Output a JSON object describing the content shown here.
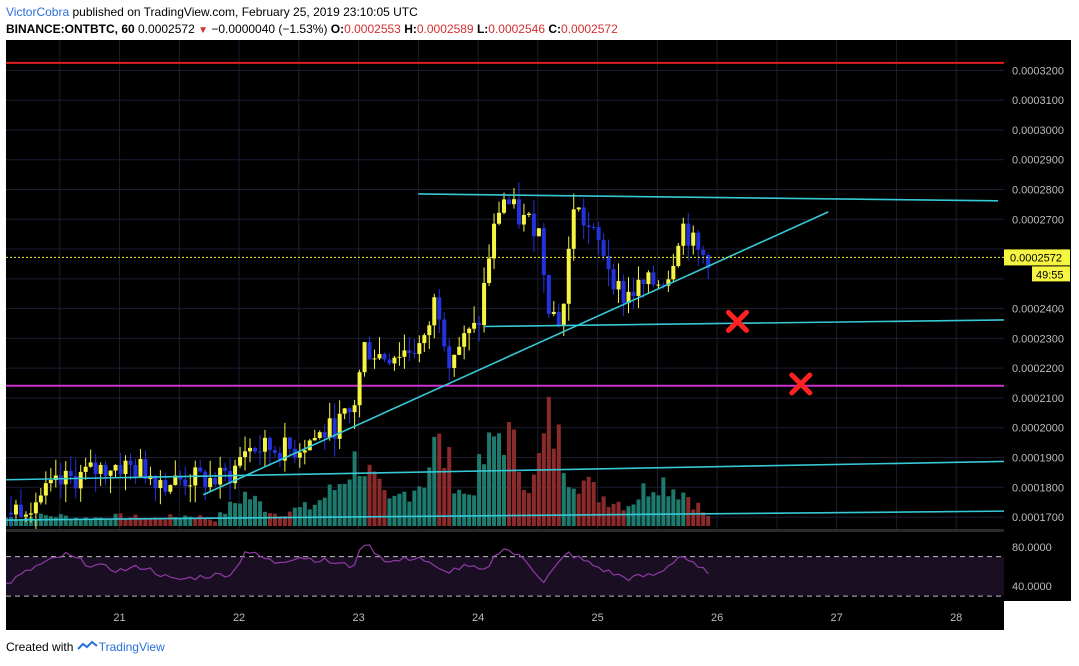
{
  "header": {
    "author": "VictorCobra",
    "published": "published on TradingView.com, February 25, 2019 23:10:05 UTC",
    "symbol": "BINANCE:ONTBTC, 60",
    "last": "0.0002572",
    "change": "−0.0000040 (−1.53%)",
    "o_label": "O:",
    "o": "0.0002553",
    "h_label": "H:",
    "h": "0.0002589",
    "l_label": "L:",
    "l": "0.0002546",
    "c_label": "C:",
    "c": "0.0002572"
  },
  "footer": {
    "created": "Created with",
    "brand": "TradingView"
  },
  "price_tag": {
    "price": "0.0002572",
    "countdown": "49:55"
  },
  "colors": {
    "bg": "#000000",
    "up": "#f5f542",
    "down": "#2233dd",
    "grid": "#1d1d33",
    "trend": "#35c9d6",
    "red_level": "#e02020",
    "magenta_level": "#cc33cc",
    "rsi": "#8e3aa5",
    "vol_up": "#1f7a6e",
    "vol_down": "#8b2a2a"
  },
  "chart_data": {
    "type": "candlestick",
    "title": "",
    "y_axis_ticks": [
      "0.0003200",
      "0.0003100",
      "0.0003000",
      "0.0002900",
      "0.0002800",
      "0.0002700",
      "0.0002600",
      "0.0002500",
      "0.0002400",
      "0.0002300",
      "0.0002200",
      "0.0002100",
      "0.0002000",
      "0.0001900",
      "0.0001800",
      "0.0001700"
    ],
    "ylim": [
      0.000166,
      0.0003302
    ],
    "x_axis_ticks": [
      "21",
      "22",
      "23",
      "24",
      "25",
      "26",
      "27",
      "28"
    ],
    "xlim": [
      20.05,
      28.4
    ],
    "price_levels": [
      {
        "price": 0.0003225,
        "color": "red"
      },
      {
        "price": 0.0002141,
        "color": "magenta"
      }
    ],
    "trendlines": [
      {
        "from": [
          20.0,
          0.0001825
        ],
        "to": [
          28.4,
          0.0001887
        ]
      },
      {
        "from": [
          20.0,
          0.000169
        ],
        "to": [
          28.4,
          0.000172
        ]
      },
      {
        "from": [
          21.7,
          0.0001775
        ],
        "to": [
          26.93,
          0.0002725
        ]
      },
      {
        "from": [
          23.5,
          0.0002785
        ],
        "to": [
          28.35,
          0.0002762
        ]
      },
      {
        "from": [
          24.05,
          0.000234
        ],
        "to": [
          28.4,
          0.0002362
        ]
      }
    ],
    "markers": [
      {
        "type": "x",
        "x": 26.17,
        "y": 0.0002357,
        "color": "#ff2222"
      },
      {
        "type": "x",
        "x": 26.7,
        "y": 0.0002147,
        "color": "#ff2222"
      }
    ],
    "close_keypoints": [
      [
        20.05,
        0.0001715
      ],
      [
        20.3,
        0.000176
      ],
      [
        20.55,
        0.000182
      ],
      [
        20.75,
        0.000185
      ],
      [
        20.95,
        0.0001875
      ],
      [
        21.2,
        0.000186
      ],
      [
        21.4,
        0.0001815
      ],
      [
        21.6,
        0.000183
      ],
      [
        21.8,
        0.0001822
      ],
      [
        21.95,
        0.000185
      ],
      [
        22.05,
        0.000193
      ],
      [
        22.25,
        0.000193
      ],
      [
        22.45,
        0.0001925
      ],
      [
        22.6,
        0.000196
      ],
      [
        22.75,
        0.000199
      ],
      [
        22.95,
        0.000205
      ],
      [
        23.05,
        0.000227
      ],
      [
        23.2,
        0.000224
      ],
      [
        23.4,
        0.000226
      ],
      [
        23.55,
        0.000228
      ],
      [
        23.65,
        0.000245
      ],
      [
        23.75,
        0.000224
      ],
      [
        23.9,
        0.00023
      ],
      [
        24.0,
        0.000234
      ],
      [
        24.1,
        0.00026
      ],
      [
        24.2,
        0.000278
      ],
      [
        24.35,
        0.00027
      ],
      [
        24.5,
        0.000268
      ],
      [
        24.6,
        0.00024
      ],
      [
        24.7,
        0.000235
      ],
      [
        24.8,
        0.000275
      ],
      [
        24.95,
        0.000265
      ],
      [
        25.05,
        0.000259
      ],
      [
        25.2,
        0.000244
      ],
      [
        25.35,
        0.000247
      ],
      [
        25.5,
        0.000249
      ],
      [
        25.6,
        0.000252
      ],
      [
        25.7,
        0.000269
      ],
      [
        25.85,
        0.000258
      ],
      [
        25.95,
        0.0002572
      ]
    ],
    "volume_keypoints": [
      [
        20.2,
        0.08
      ],
      [
        20.45,
        0.1
      ],
      [
        20.7,
        0.07
      ],
      [
        21.0,
        0.09
      ],
      [
        21.3,
        0.07
      ],
      [
        21.6,
        0.1
      ],
      [
        21.8,
        0.06
      ],
      [
        22.05,
        0.3
      ],
      [
        22.3,
        0.12
      ],
      [
        22.6,
        0.18
      ],
      [
        22.8,
        0.35
      ],
      [
        23.0,
        0.65
      ],
      [
        23.25,
        0.2
      ],
      [
        23.55,
        0.45
      ],
      [
        23.65,
        0.8
      ],
      [
        23.9,
        0.25
      ],
      [
        24.2,
        0.95
      ],
      [
        24.45,
        0.35
      ],
      [
        24.6,
        1.0
      ],
      [
        24.75,
        0.55
      ],
      [
        25.0,
        0.3
      ],
      [
        25.25,
        0.2
      ],
      [
        25.5,
        0.45
      ],
      [
        25.75,
        0.3
      ],
      [
        25.95,
        0.05
      ]
    ],
    "rsi": {
      "ticks": [
        "80.0000",
        "40.0000"
      ],
      "ylim": [
        25,
        95
      ],
      "upper": 70,
      "lower": 30,
      "keypoints": [
        [
          20.05,
          42
        ],
        [
          20.3,
          60
        ],
        [
          20.55,
          72
        ],
        [
          20.75,
          62
        ],
        [
          21.0,
          56
        ],
        [
          21.2,
          60
        ],
        [
          21.45,
          46
        ],
        [
          21.7,
          50
        ],
        [
          21.95,
          53
        ],
        [
          22.05,
          76
        ],
        [
          22.3,
          64
        ],
        [
          22.5,
          70
        ],
        [
          22.7,
          66
        ],
        [
          22.95,
          60
        ],
        [
          23.05,
          84
        ],
        [
          23.25,
          64
        ],
        [
          23.5,
          70
        ],
        [
          23.7,
          54
        ],
        [
          23.9,
          60
        ],
        [
          24.05,
          55
        ],
        [
          24.2,
          80
        ],
        [
          24.4,
          66
        ],
        [
          24.55,
          45
        ],
        [
          24.75,
          74
        ],
        [
          24.95,
          62
        ],
        [
          25.1,
          54
        ],
        [
          25.25,
          48
        ],
        [
          25.5,
          52
        ],
        [
          25.7,
          72
        ],
        [
          25.85,
          57
        ],
        [
          25.95,
          55
        ]
      ]
    }
  }
}
